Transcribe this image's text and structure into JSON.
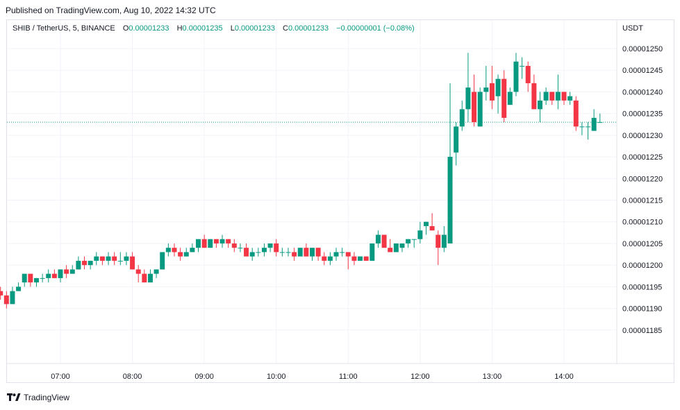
{
  "published": "Published on TradingView.com, Aug 10, 2022 14:32 UTC",
  "legend": {
    "symbol": "SHIB / TetherUS, 5, BINANCE",
    "o_key": "O",
    "o_val": "0.00001233",
    "h_key": "H",
    "h_val": "0.00001235",
    "l_key": "L",
    "l_val": "0.00001233",
    "c_key": "C",
    "c_val": "0.00001233",
    "change": "−0.00000001 (−0.08%)"
  },
  "footer": {
    "brand": "TradingView",
    "logo_icon": "tradingview-logo-icon"
  },
  "colors": {
    "up": "#089981",
    "down": "#f23645",
    "grid": "#f0f3fa",
    "price_line": "#089981"
  },
  "chart_data": {
    "type": "candlestick",
    "currency_label": "USDT",
    "interval_minutes": 5,
    "ylim": [
      1.18e-05,
      1.25e-05
    ],
    "y_ticks": [
      "0.00001250",
      "0.00001245",
      "0.00001240",
      "0.00001235",
      "0.00001230",
      "0.00001225",
      "0.00001220",
      "0.00001215",
      "0.00001210",
      "0.00001205",
      "0.00001200",
      "0.00001195",
      "0.00001190",
      "0.00001185"
    ],
    "x_ticks": [
      "07:00",
      "08:00",
      "09:00",
      "10:00",
      "11:00",
      "12:00",
      "13:00",
      "14:00"
    ],
    "x_tick_times": [
      420,
      480,
      540,
      600,
      660,
      720,
      780,
      840
    ],
    "last_price": 1.233e-05,
    "candles": [
      {
        "t": 360,
        "o": 1.191e-05,
        "h": 1.192e-05,
        "l": 1.191e-05,
        "c": 1.192e-05
      },
      {
        "t": 365,
        "o": 1.192e-05,
        "h": 1.195e-05,
        "l": 1.19e-05,
        "c": 1.194e-05
      },
      {
        "t": 370,
        "o": 1.194e-05,
        "h": 1.195e-05,
        "l": 1.192e-05,
        "c": 1.193e-05
      },
      {
        "t": 375,
        "o": 1.193e-05,
        "h": 1.194e-05,
        "l": 1.19e-05,
        "c": 1.191e-05
      },
      {
        "t": 380,
        "o": 1.191e-05,
        "h": 1.195e-05,
        "l": 1.191e-05,
        "c": 1.194e-05
      },
      {
        "t": 385,
        "o": 1.194e-05,
        "h": 1.196e-05,
        "l": 1.194e-05,
        "c": 1.195e-05
      },
      {
        "t": 390,
        "o": 1.196e-05,
        "h": 1.198e-05,
        "l": 1.195e-05,
        "c": 1.198e-05
      },
      {
        "t": 395,
        "o": 1.198e-05,
        "h": 1.198e-05,
        "l": 1.195e-05,
        "c": 1.196e-05
      },
      {
        "t": 400,
        "o": 1.196e-05,
        "h": 1.197e-05,
        "l": 1.195e-05,
        "c": 1.197e-05
      },
      {
        "t": 405,
        "o": 1.197e-05,
        "h": 1.198e-05,
        "l": 1.196e-05,
        "c": 1.197e-05
      },
      {
        "t": 410,
        "o": 1.197e-05,
        "h": 1.199e-05,
        "l": 1.196e-05,
        "c": 1.198e-05
      },
      {
        "t": 415,
        "o": 1.198e-05,
        "h": 1.199e-05,
        "l": 1.197e-05,
        "c": 1.197e-05
      },
      {
        "t": 420,
        "o": 1.197e-05,
        "h": 1.199e-05,
        "l": 1.196e-05,
        "c": 1.199e-05
      },
      {
        "t": 425,
        "o": 1.199e-05,
        "h": 1.2e-05,
        "l": 1.197e-05,
        "c": 1.198e-05
      },
      {
        "t": 430,
        "o": 1.198e-05,
        "h": 1.2e-05,
        "l": 1.198e-05,
        "c": 1.199e-05
      },
      {
        "t": 435,
        "o": 1.199e-05,
        "h": 1.202e-05,
        "l": 1.199e-05,
        "c": 1.201e-05
      },
      {
        "t": 440,
        "o": 1.201e-05,
        "h": 1.202e-05,
        "l": 1.199e-05,
        "c": 1.2e-05
      },
      {
        "t": 445,
        "o": 1.2e-05,
        "h": 1.201e-05,
        "l": 1.199e-05,
        "c": 1.201e-05
      },
      {
        "t": 450,
        "o": 1.201e-05,
        "h": 1.203e-05,
        "l": 1.2e-05,
        "c": 1.202e-05
      },
      {
        "t": 455,
        "o": 1.202e-05,
        "h": 1.202e-05,
        "l": 1.2e-05,
        "c": 1.201e-05
      },
      {
        "t": 460,
        "o": 1.201e-05,
        "h": 1.203e-05,
        "l": 1.2e-05,
        "c": 1.202e-05
      },
      {
        "t": 465,
        "o": 1.202e-05,
        "h": 1.203e-05,
        "l": 1.2e-05,
        "c": 1.201e-05
      },
      {
        "t": 470,
        "o": 1.201e-05,
        "h": 1.203e-05,
        "l": 1.2e-05,
        "c": 1.201e-05
      },
      {
        "t": 475,
        "o": 1.201e-05,
        "h": 1.203e-05,
        "l": 1.2e-05,
        "c": 1.202e-05
      },
      {
        "t": 480,
        "o": 1.202e-05,
        "h": 1.203e-05,
        "l": 1.199e-05,
        "c": 1.199e-05
      },
      {
        "t": 485,
        "o": 1.199e-05,
        "h": 1.2e-05,
        "l": 1.196e-05,
        "c": 1.198e-05
      },
      {
        "t": 490,
        "o": 1.198e-05,
        "h": 1.199e-05,
        "l": 1.196e-05,
        "c": 1.196e-05
      },
      {
        "t": 495,
        "o": 1.196e-05,
        "h": 1.199e-05,
        "l": 1.196e-05,
        "c": 1.198e-05
      },
      {
        "t": 500,
        "o": 1.198e-05,
        "h": 1.199e-05,
        "l": 1.197e-05,
        "c": 1.199e-05
      },
      {
        "t": 505,
        "o": 1.199e-05,
        "h": 1.203e-05,
        "l": 1.199e-05,
        "c": 1.203e-05
      },
      {
        "t": 510,
        "o": 1.203e-05,
        "h": 1.205e-05,
        "l": 1.202e-05,
        "c": 1.204e-05
      },
      {
        "t": 515,
        "o": 1.204e-05,
        "h": 1.205e-05,
        "l": 1.202e-05,
        "c": 1.203e-05
      },
      {
        "t": 520,
        "o": 1.203e-05,
        "h": 1.204e-05,
        "l": 1.201e-05,
        "c": 1.202e-05
      },
      {
        "t": 525,
        "o": 1.202e-05,
        "h": 1.204e-05,
        "l": 1.202e-05,
        "c": 1.203e-05
      },
      {
        "t": 530,
        "o": 1.203e-05,
        "h": 1.205e-05,
        "l": 1.203e-05,
        "c": 1.204e-05
      },
      {
        "t": 535,
        "o": 1.204e-05,
        "h": 1.206e-05,
        "l": 1.203e-05,
        "c": 1.206e-05
      },
      {
        "t": 540,
        "o": 1.206e-05,
        "h": 1.207e-05,
        "l": 1.204e-05,
        "c": 1.204e-05
      },
      {
        "t": 545,
        "o": 1.204e-05,
        "h": 1.206e-05,
        "l": 1.204e-05,
        "c": 1.206e-05
      },
      {
        "t": 550,
        "o": 1.206e-05,
        "h": 1.206e-05,
        "l": 1.204e-05,
        "c": 1.205e-05
      },
      {
        "t": 555,
        "o": 1.205e-05,
        "h": 1.207e-05,
        "l": 1.204e-05,
        "c": 1.206e-05
      },
      {
        "t": 560,
        "o": 1.206e-05,
        "h": 1.206e-05,
        "l": 1.204e-05,
        "c": 1.205e-05
      },
      {
        "t": 565,
        "o": 1.205e-05,
        "h": 1.206e-05,
        "l": 1.203e-05,
        "c": 1.204e-05
      },
      {
        "t": 570,
        "o": 1.204e-05,
        "h": 1.205e-05,
        "l": 1.203e-05,
        "c": 1.204e-05
      },
      {
        "t": 575,
        "o": 1.204e-05,
        "h": 1.205e-05,
        "l": 1.202e-05,
        "c": 1.202e-05
      },
      {
        "t": 580,
        "o": 1.202e-05,
        "h": 1.204e-05,
        "l": 1.201e-05,
        "c": 1.203e-05
      },
      {
        "t": 585,
        "o": 1.203e-05,
        "h": 1.204e-05,
        "l": 1.202e-05,
        "c": 1.203e-05
      },
      {
        "t": 590,
        "o": 1.203e-05,
        "h": 1.205e-05,
        "l": 1.202e-05,
        "c": 1.204e-05
      },
      {
        "t": 595,
        "o": 1.204e-05,
        "h": 1.205e-05,
        "l": 1.203e-05,
        "c": 1.205e-05
      },
      {
        "t": 600,
        "o": 1.205e-05,
        "h": 1.206e-05,
        "l": 1.202e-05,
        "c": 1.203e-05
      },
      {
        "t": 605,
        "o": 1.203e-05,
        "h": 1.204e-05,
        "l": 1.202e-05,
        "c": 1.203e-05
      },
      {
        "t": 610,
        "o": 1.203e-05,
        "h": 1.204e-05,
        "l": 1.202e-05,
        "c": 1.203e-05
      },
      {
        "t": 615,
        "o": 1.203e-05,
        "h": 1.204e-05,
        "l": 1.201e-05,
        "c": 1.202e-05
      },
      {
        "t": 620,
        "o": 1.202e-05,
        "h": 1.204e-05,
        "l": 1.202e-05,
        "c": 1.204e-05
      },
      {
        "t": 625,
        "o": 1.204e-05,
        "h": 1.205e-05,
        "l": 1.202e-05,
        "c": 1.202e-05
      },
      {
        "t": 630,
        "o": 1.202e-05,
        "h": 1.204e-05,
        "l": 1.201e-05,
        "c": 1.204e-05
      },
      {
        "t": 635,
        "o": 1.204e-05,
        "h": 1.204e-05,
        "l": 1.201e-05,
        "c": 1.202e-05
      },
      {
        "t": 640,
        "o": 1.202e-05,
        "h": 1.203e-05,
        "l": 1.2e-05,
        "c": 1.201e-05
      },
      {
        "t": 645,
        "o": 1.201e-05,
        "h": 1.203e-05,
        "l": 1.2e-05,
        "c": 1.202e-05
      },
      {
        "t": 650,
        "o": 1.202e-05,
        "h": 1.204e-05,
        "l": 1.201e-05,
        "c": 1.203e-05
      },
      {
        "t": 655,
        "o": 1.203e-05,
        "h": 1.204e-05,
        "l": 1.202e-05,
        "c": 1.203e-05
      },
      {
        "t": 660,
        "o": 1.203e-05,
        "h": 1.203e-05,
        "l": 1.199e-05,
        "c": 1.202e-05
      },
      {
        "t": 665,
        "o": 1.202e-05,
        "h": 1.203e-05,
        "l": 1.2e-05,
        "c": 1.201e-05
      },
      {
        "t": 670,
        "o": 1.201e-05,
        "h": 1.202e-05,
        "l": 1.201e-05,
        "c": 1.202e-05
      },
      {
        "t": 675,
        "o": 1.202e-05,
        "h": 1.202e-05,
        "l": 1.201e-05,
        "c": 1.201e-05
      },
      {
        "t": 680,
        "o": 1.201e-05,
        "h": 1.205e-05,
        "l": 1.201e-05,
        "c": 1.205e-05
      },
      {
        "t": 685,
        "o": 1.205e-05,
        "h": 1.208e-05,
        "l": 1.204e-05,
        "c": 1.207e-05
      },
      {
        "t": 690,
        "o": 1.207e-05,
        "h": 1.207e-05,
        "l": 1.204e-05,
        "c": 1.204e-05
      },
      {
        "t": 695,
        "o": 1.204e-05,
        "h": 1.206e-05,
        "l": 1.203e-05,
        "c": 1.203e-05
      },
      {
        "t": 700,
        "o": 1.203e-05,
        "h": 1.205e-05,
        "l": 1.203e-05,
        "c": 1.205e-05
      },
      {
        "t": 705,
        "o": 1.204e-05,
        "h": 1.205e-05,
        "l": 1.203e-05,
        "c": 1.205e-05
      },
      {
        "t": 710,
        "o": 1.205e-05,
        "h": 1.206e-05,
        "l": 1.204e-05,
        "c": 1.206e-05
      },
      {
        "t": 715,
        "o": 1.206e-05,
        "h": 1.206e-05,
        "l": 1.204e-05,
        "c": 1.206e-05
      },
      {
        "t": 720,
        "o": 1.206e-05,
        "h": 1.21e-05,
        "l": 1.205e-05,
        "c": 1.208e-05
      },
      {
        "t": 725,
        "o": 1.209e-05,
        "h": 1.21e-05,
        "l": 1.207e-05,
        "c": 1.21e-05
      },
      {
        "t": 730,
        "o": 1.209e-05,
        "h": 1.212e-05,
        "l": 1.208e-05,
        "c": 1.208e-05
      },
      {
        "t": 735,
        "o": 1.207e-05,
        "h": 1.208e-05,
        "l": 1.2e-05,
        "c": 1.204e-05
      },
      {
        "t": 740,
        "o": 1.204e-05,
        "h": 1.209e-05,
        "l": 1.203e-05,
        "c": 1.207e-05
      },
      {
        "t": 745,
        "o": 1.205e-05,
        "h": 1.242e-05,
        "l": 1.205e-05,
        "c": 1.225e-05
      },
      {
        "t": 750,
        "o": 1.226e-05,
        "h": 1.233e-05,
        "l": 1.223e-05,
        "c": 1.232e-05
      },
      {
        "t": 755,
        "o": 1.232e-05,
        "h": 1.238e-05,
        "l": 1.231e-05,
        "c": 1.236e-05
      },
      {
        "t": 760,
        "o": 1.236e-05,
        "h": 1.249e-05,
        "l": 1.233e-05,
        "c": 1.241e-05
      },
      {
        "t": 765,
        "o": 1.24e-05,
        "h": 1.244e-05,
        "l": 1.232e-05,
        "c": 1.233e-05
      },
      {
        "t": 770,
        "o": 1.232e-05,
        "h": 1.241e-05,
        "l": 1.232e-05,
        "c": 1.24e-05
      },
      {
        "t": 775,
        "o": 1.24e-05,
        "h": 1.246e-05,
        "l": 1.238e-05,
        "c": 1.241e-05
      },
      {
        "t": 780,
        "o": 1.242e-05,
        "h": 1.246e-05,
        "l": 1.236e-05,
        "c": 1.238e-05
      },
      {
        "t": 785,
        "o": 1.239e-05,
        "h": 1.244e-05,
        "l": 1.235e-05,
        "c": 1.243e-05
      },
      {
        "t": 790,
        "o": 1.243e-05,
        "h": 1.245e-05,
        "l": 1.233e-05,
        "c": 1.234e-05
      },
      {
        "t": 795,
        "o": 1.237e-05,
        "h": 1.241e-05,
        "l": 1.237e-05,
        "c": 1.24e-05
      },
      {
        "t": 800,
        "o": 1.24e-05,
        "h": 1.249e-05,
        "l": 1.239e-05,
        "c": 1.247e-05
      },
      {
        "t": 805,
        "o": 1.246e-05,
        "h": 1.248e-05,
        "l": 1.243e-05,
        "c": 1.246e-05
      },
      {
        "t": 810,
        "o": 1.246e-05,
        "h": 1.247e-05,
        "l": 1.24e-05,
        "c": 1.242e-05
      },
      {
        "t": 815,
        "o": 1.242e-05,
        "h": 1.244e-05,
        "l": 1.236e-05,
        "c": 1.236e-05
      },
      {
        "t": 820,
        "o": 1.236e-05,
        "h": 1.24e-05,
        "l": 1.233e-05,
        "c": 1.238e-05
      },
      {
        "t": 825,
        "o": 1.238e-05,
        "h": 1.241e-05,
        "l": 1.237e-05,
        "c": 1.24e-05
      },
      {
        "t": 830,
        "o": 1.24e-05,
        "h": 1.24e-05,
        "l": 1.237e-05,
        "c": 1.238e-05
      },
      {
        "t": 835,
        "o": 1.238e-05,
        "h": 1.244e-05,
        "l": 1.236e-05,
        "c": 1.24e-05
      },
      {
        "t": 840,
        "o": 1.24e-05,
        "h": 1.24e-05,
        "l": 1.237e-05,
        "c": 1.238e-05
      },
      {
        "t": 845,
        "o": 1.238e-05,
        "h": 1.24e-05,
        "l": 1.237e-05,
        "c": 1.239e-05
      },
      {
        "t": 850,
        "o": 1.238e-05,
        "h": 1.239e-05,
        "l": 1.231e-05,
        "c": 1.232e-05
      },
      {
        "t": 855,
        "o": 1.232e-05,
        "h": 1.233e-05,
        "l": 1.23e-05,
        "c": 1.232e-05
      },
      {
        "t": 860,
        "o": 1.232e-05,
        "h": 1.233e-05,
        "l": 1.229e-05,
        "c": 1.232e-05
      },
      {
        "t": 865,
        "o": 1.231e-05,
        "h": 1.236e-05,
        "l": 1.231e-05,
        "c": 1.234e-05
      },
      {
        "t": 870,
        "o": 1.233e-05,
        "h": 1.235e-05,
        "l": 1.233e-05,
        "c": 1.233e-05
      }
    ]
  }
}
